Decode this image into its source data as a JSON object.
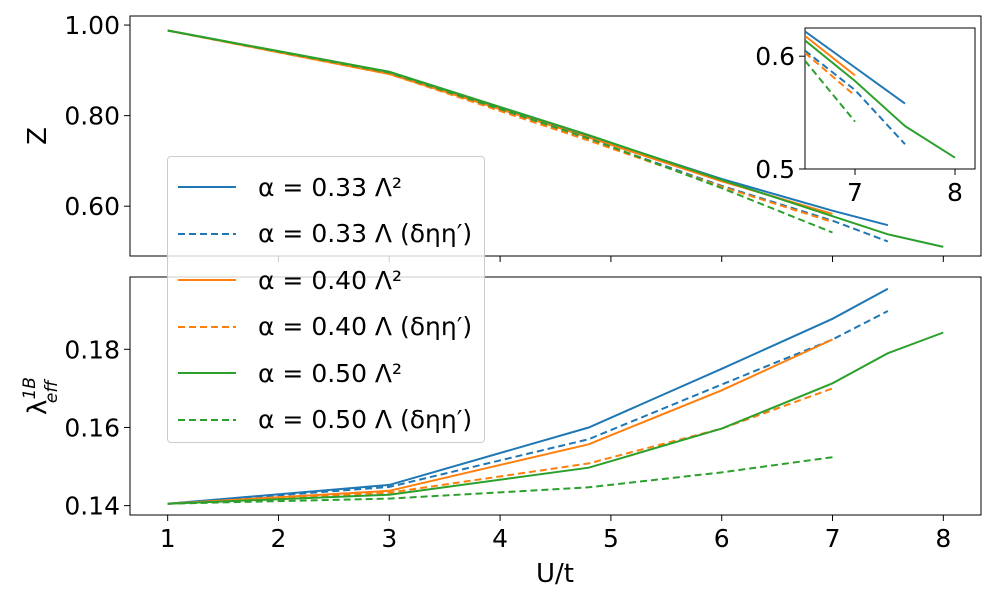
{
  "chart_data": [
    {
      "panel": "top",
      "type": "line",
      "ylabel": "Z",
      "ylim": [
        0.49,
        1.02
      ],
      "xlim": [
        0.66,
        8.34
      ],
      "yticks": [
        "0.60",
        "0.80",
        "1.00"
      ],
      "ytick_values": [
        0.6,
        0.8,
        1.0
      ],
      "series": [
        {
          "name": "α = 0.33 Λ^2",
          "color": "#1f77b4",
          "dash": false,
          "x": [
            1,
            3,
            4.8,
            6,
            7,
            7.5
          ],
          "y": [
            0.988,
            0.895,
            0.755,
            0.66,
            0.59,
            0.558
          ]
        },
        {
          "name": "α = 0.33 Λ (δηη')",
          "color": "#1f77b4",
          "dash": true,
          "x": [
            1,
            3,
            4.8,
            6,
            7,
            7.5
          ],
          "y": [
            0.988,
            0.895,
            0.748,
            0.645,
            0.568,
            0.522
          ]
        },
        {
          "name": "α = 0.40 Λ^2",
          "color": "#ff7f0e",
          "dash": false,
          "x": [
            1,
            3,
            4.8,
            6,
            7
          ],
          "y": [
            0.988,
            0.892,
            0.752,
            0.655,
            0.583
          ]
        },
        {
          "name": "α = 0.40 Λ (δηη')",
          "color": "#ff7f0e",
          "dash": true,
          "x": [
            1,
            3,
            4.8,
            6,
            7
          ],
          "y": [
            0.988,
            0.892,
            0.745,
            0.643,
            0.565
          ]
        },
        {
          "name": "α = 0.50 Λ^2",
          "color": "#2ca02c",
          "dash": false,
          "x": [
            1,
            3,
            4.8,
            6,
            7,
            7.5,
            8
          ],
          "y": [
            0.988,
            0.897,
            0.757,
            0.658,
            0.578,
            0.538,
            0.51
          ]
        },
        {
          "name": "α = 0.50 Λ (δηη')",
          "color": "#2ca02c",
          "dash": true,
          "x": [
            1,
            3,
            4.8,
            6,
            7
          ],
          "y": [
            0.988,
            0.895,
            0.75,
            0.64,
            0.542
          ]
        }
      ]
    },
    {
      "panel": "inset",
      "type": "line",
      "xlim": [
        6.5,
        8.2
      ],
      "ylim": [
        0.5,
        0.625
      ],
      "xticks": [
        "7",
        "8"
      ],
      "xtick_values": [
        7,
        8
      ],
      "yticks": [
        "0.5",
        "0.6"
      ],
      "ytick_values": [
        0.5,
        0.6
      ],
      "series": [
        {
          "name": "α = 0.33 Λ^2",
          "color": "#1f77b4",
          "dash": false,
          "x": [
            6.5,
            7,
            7.5
          ],
          "y": [
            0.622,
            0.59,
            0.558
          ]
        },
        {
          "name": "α = 0.33 Λ (δηη')",
          "color": "#1f77b4",
          "dash": true,
          "x": [
            6.5,
            7,
            7.5
          ],
          "y": [
            0.605,
            0.57,
            0.522
          ]
        },
        {
          "name": "α = 0.40 Λ^2",
          "color": "#ff7f0e",
          "dash": false,
          "x": [
            6.5,
            7
          ],
          "y": [
            0.618,
            0.583
          ]
        },
        {
          "name": "α = 0.40 Λ (δηη')",
          "color": "#ff7f0e",
          "dash": true,
          "x": [
            6.5,
            7
          ],
          "y": [
            0.603,
            0.565
          ]
        },
        {
          "name": "α = 0.50 Λ^2",
          "color": "#2ca02c",
          "dash": false,
          "x": [
            6.5,
            7,
            7.5,
            8
          ],
          "y": [
            0.614,
            0.578,
            0.538,
            0.51
          ]
        },
        {
          "name": "α = 0.50 Λ (δηη')",
          "color": "#2ca02c",
          "dash": true,
          "x": [
            6.5,
            7
          ],
          "y": [
            0.596,
            0.542
          ]
        }
      ]
    },
    {
      "panel": "bottom",
      "type": "line",
      "xlabel": "U/t",
      "ylabel": "λ_eff^1B",
      "xlim": [
        0.66,
        8.34
      ],
      "ylim": [
        0.1376,
        0.1985
      ],
      "xticks": [
        "1",
        "2",
        "3",
        "4",
        "5",
        "6",
        "7",
        "8"
      ],
      "xtick_values": [
        1,
        2,
        3,
        4,
        5,
        6,
        7,
        8
      ],
      "yticks": [
        "0.14",
        "0.16",
        "0.18"
      ],
      "ytick_values": [
        0.14,
        0.16,
        0.18
      ],
      "series": [
        {
          "name": "α = 0.33 Λ^2",
          "color": "#1f77b4",
          "dash": false,
          "x": [
            1,
            3,
            4.8,
            6,
            7,
            7.5
          ],
          "y": [
            0.1405,
            0.1453,
            0.16,
            0.175,
            0.1878,
            0.1955
          ]
        },
        {
          "name": "α = 0.33 Λ (δηη')",
          "color": "#1f77b4",
          "dash": true,
          "x": [
            1,
            3,
            4.8,
            6,
            7,
            7.5
          ],
          "y": [
            0.1405,
            0.1448,
            0.157,
            0.171,
            0.1825,
            0.1898
          ]
        },
        {
          "name": "α = 0.40 Λ^2",
          "color": "#ff7f0e",
          "dash": false,
          "x": [
            1,
            3,
            4.8,
            6,
            7
          ],
          "y": [
            0.1405,
            0.1438,
            0.1557,
            0.1695,
            0.1825
          ]
        },
        {
          "name": "α = 0.40 Λ (δηη')",
          "color": "#ff7f0e",
          "dash": true,
          "x": [
            1,
            3,
            4.8,
            6,
            7
          ],
          "y": [
            0.1405,
            0.1433,
            0.1508,
            0.1597,
            0.17
          ]
        },
        {
          "name": "α = 0.50 Λ^2",
          "color": "#2ca02c",
          "dash": false,
          "x": [
            1,
            3,
            4.8,
            6,
            7,
            7.5,
            8
          ],
          "y": [
            0.1405,
            0.1428,
            0.1497,
            0.1597,
            0.1713,
            0.179,
            0.1843
          ]
        },
        {
          "name": "α = 0.50 Λ (δηη')",
          "color": "#2ca02c",
          "dash": true,
          "x": [
            1,
            3,
            4.8,
            6,
            7
          ],
          "y": [
            0.1405,
            0.1418,
            0.1447,
            0.1485,
            0.1524
          ]
        }
      ]
    }
  ],
  "legend": {
    "position": "left",
    "entries": [
      {
        "label": "α = 0.33 Λ²",
        "color": "#1f77b4",
        "dash": false
      },
      {
        "label": "α = 0.33 Λ (δηη′)",
        "color": "#1f77b4",
        "dash": true
      },
      {
        "label": "α = 0.40 Λ²",
        "color": "#ff7f0e",
        "dash": false
      },
      {
        "label": "α = 0.40 Λ (δηη′)",
        "color": "#ff7f0e",
        "dash": true
      },
      {
        "label": "α = 0.50 Λ²",
        "color": "#2ca02c",
        "dash": false
      },
      {
        "label": "α = 0.50 Λ (δηη′)",
        "color": "#2ca02c",
        "dash": true
      }
    ]
  }
}
